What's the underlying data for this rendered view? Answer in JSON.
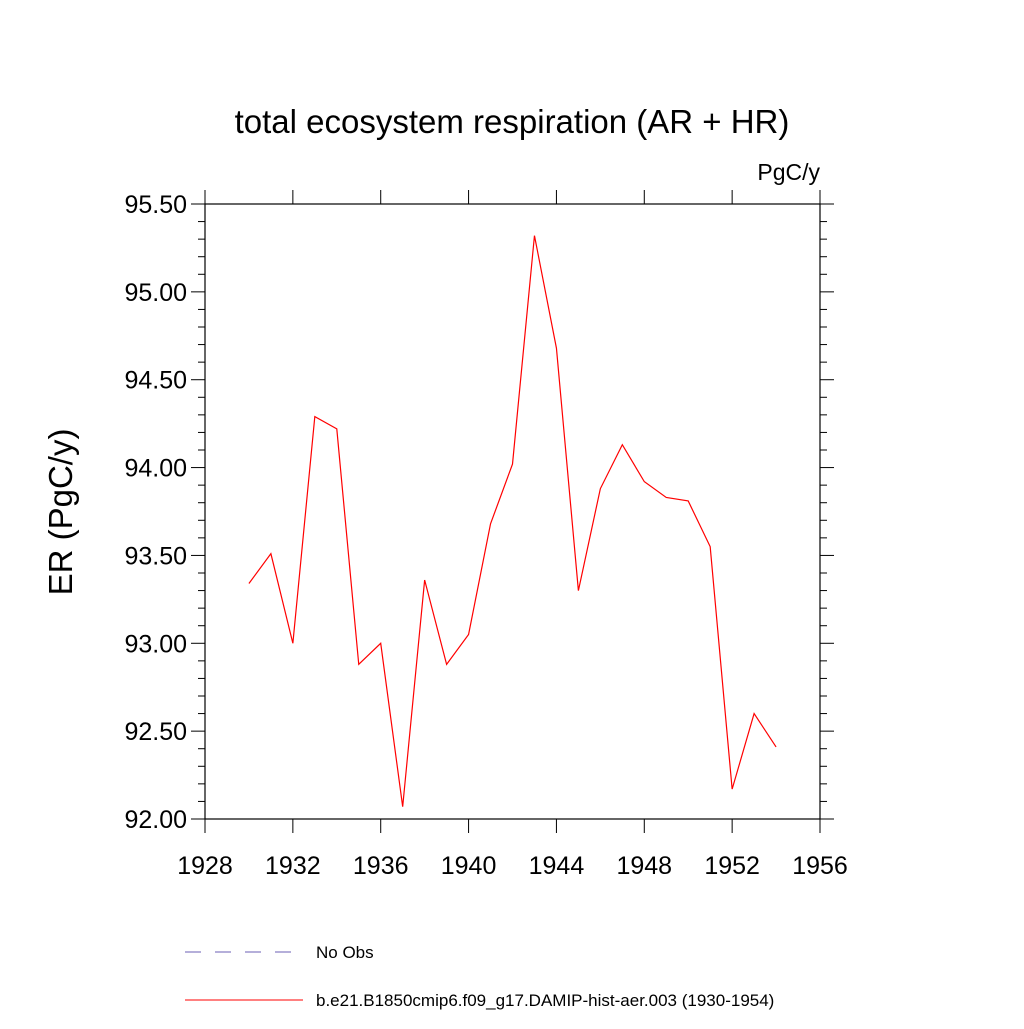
{
  "chart_data": {
    "type": "line",
    "title": "total ecosystem respiration (AR + HR)",
    "units_label": "PgC/y",
    "ylabel": "ER  (PgC/y)",
    "xlabel": "",
    "xlim": [
      1928,
      1956
    ],
    "ylim": [
      92.0,
      95.5
    ],
    "x_ticks": [
      "1928",
      "1932",
      "1936",
      "1940",
      "1944",
      "1948",
      "1952",
      "1956"
    ],
    "y_ticks": [
      "92.00",
      "92.50",
      "93.00",
      "93.50",
      "94.00",
      "94.50",
      "95.00",
      "95.50"
    ],
    "grid": false,
    "legend_position": "bottom",
    "series": [
      {
        "name": "b.e21.B1850cmip6.f09_g17.DAMIP-hist-aer.003 (1930-1954)",
        "color": "#ff0000",
        "style": "solid",
        "x": [
          1930,
          1931,
          1932,
          1933,
          1934,
          1935,
          1936,
          1937,
          1938,
          1939,
          1940,
          1941,
          1942,
          1943,
          1944,
          1945,
          1946,
          1947,
          1948,
          1949,
          1950,
          1951,
          1952,
          1953,
          1954
        ],
        "values": [
          93.34,
          93.51,
          93.0,
          94.29,
          94.22,
          92.88,
          93.0,
          92.07,
          93.36,
          92.88,
          93.05,
          93.68,
          94.02,
          95.32,
          94.68,
          93.3,
          93.88,
          94.13,
          93.92,
          93.83,
          93.81,
          93.55,
          92.17,
          92.6,
          92.41
        ]
      }
    ],
    "legend": [
      {
        "label": "No Obs",
        "color": "#6b5fb5",
        "style": "dashed"
      },
      {
        "label": "b.e21.B1850cmip6.f09_g17.DAMIP-hist-aer.003 (1930-1954)",
        "color": "#ff0000",
        "style": "solid"
      }
    ]
  }
}
